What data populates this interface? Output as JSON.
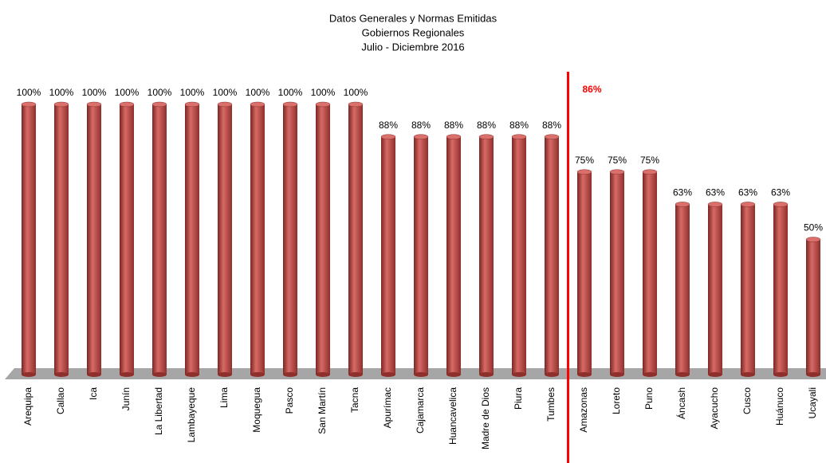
{
  "chart_data": {
    "type": "bar",
    "title": "Datos Generales y Normas Emitidas",
    "subtitle": "Gobiernos Regionales",
    "period": "Julio - Diciembre 2016",
    "categories": [
      "Arequipa",
      "Callao",
      "Ica",
      "Junín",
      "La Libertad",
      "Lambayeque",
      "Lima",
      "Moquegua",
      "Pasco",
      "San Martín",
      "Tacna",
      "Apurímac",
      "Cajamarca",
      "Huancavelica",
      "Madre de Dios",
      "Piura",
      "Tumbes",
      "Amazonas",
      "Loreto",
      "Puno",
      "Áncash",
      "Ayacucho",
      "Cusco",
      "Huánuco",
      "Ucayali"
    ],
    "values": [
      100,
      100,
      100,
      100,
      100,
      100,
      100,
      100,
      100,
      100,
      100,
      88,
      88,
      88,
      88,
      88,
      88,
      75,
      75,
      75,
      63,
      63,
      63,
      63,
      50
    ],
    "value_labels": [
      "100%",
      "100%",
      "100%",
      "100%",
      "100%",
      "100%",
      "100%",
      "100%",
      "100%",
      "100%",
      "100%",
      "88%",
      "88%",
      "88%",
      "88%",
      "88%",
      "88%",
      "75%",
      "75%",
      "75%",
      "63%",
      "63%",
      "63%",
      "63%",
      "50%"
    ],
    "color": "#c0504d",
    "ylim": [
      0,
      100
    ],
    "reference_line": {
      "value": 86,
      "label": "86%",
      "color": "#ff0000"
    }
  }
}
